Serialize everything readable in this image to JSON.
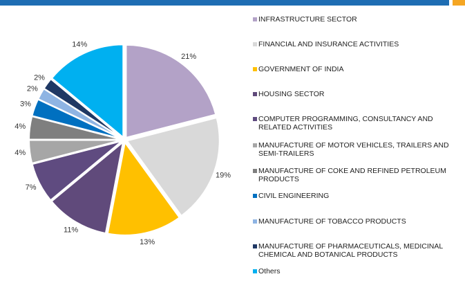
{
  "chart_data": {
    "type": "pie",
    "categories": [
      "INFRASTRUCTURE SECTOR",
      "FINANCIAL AND INSURANCE ACTIVITIES",
      "GOVERNMENT OF INDIA",
      "HOUSING SECTOR",
      "COMPUTER PROGRAMMING, CONSULTANCY AND RELATED ACTIVITIES",
      "MANUFACTURE OF MOTOR VEHICLES, TRAILERS AND SEMI-TRAILERS",
      "MANUFACTURE OF COKE AND REFINED PETROLEUM PRODUCTS",
      "CIVIL ENGINEERING",
      "MANUFACTURE OF TOBACCO PRODUCTS",
      "MANUFACTURE OF PHARMACEUTICALS, MEDICINAL CHEMICAL AND BOTANICAL PRODUCTS",
      "Others"
    ],
    "values": [
      21,
      19,
      13,
      11,
      7,
      4,
      4,
      3,
      2,
      2,
      14
    ],
    "value_labels": [
      "21%",
      "19%",
      "13%",
      "11%",
      "7%",
      "4%",
      "4%",
      "3%",
      "2%",
      "2%",
      "14%"
    ],
    "colors": [
      "#b3a2c7",
      "#d9d9d9",
      "#ffc000",
      "#604a7b",
      "#5f4b80",
      "#a6a6a6",
      "#7f7f7f",
      "#0070c0",
      "#8eb4e3",
      "#1f3864",
      "#00b0f0"
    ],
    "legend": "right"
  }
}
